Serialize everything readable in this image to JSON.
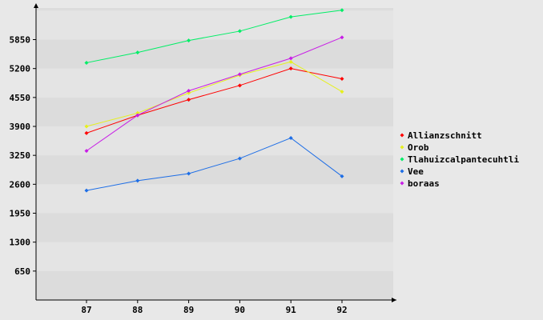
{
  "chart_data": {
    "type": "line",
    "title": "",
    "xlabel": "",
    "ylabel": "",
    "categories": [
      "87",
      "88",
      "89",
      "90",
      "91",
      "92"
    ],
    "y_ticks": [
      650,
      1300,
      1950,
      2600,
      3250,
      3900,
      4550,
      5200,
      5850
    ],
    "ylim": [
      0,
      6560
    ],
    "grid": "horizontal bands",
    "legend_position": "right",
    "series": [
      {
        "name": "Allianzschnitt",
        "color": "#ff0000",
        "values": [
          3750,
          4150,
          4500,
          4820,
          5200,
          4970
        ]
      },
      {
        "name": "Orob",
        "color": "#e6f01e",
        "values": [
          3900,
          4200,
          4650,
          5050,
          5350,
          4680
        ]
      },
      {
        "name": "Tlahuizcalpantecuhtli",
        "color": "#00ee66",
        "values": [
          5330,
          5560,
          5830,
          6040,
          6360,
          6510
        ]
      },
      {
        "name": "Vee",
        "color": "#1e6ee6",
        "values": [
          2460,
          2680,
          2840,
          3180,
          3640,
          2780
        ]
      },
      {
        "name": "boraas",
        "color": "#c81ee6",
        "values": [
          3350,
          4150,
          4700,
          5070,
          5430,
          5900
        ]
      }
    ]
  }
}
